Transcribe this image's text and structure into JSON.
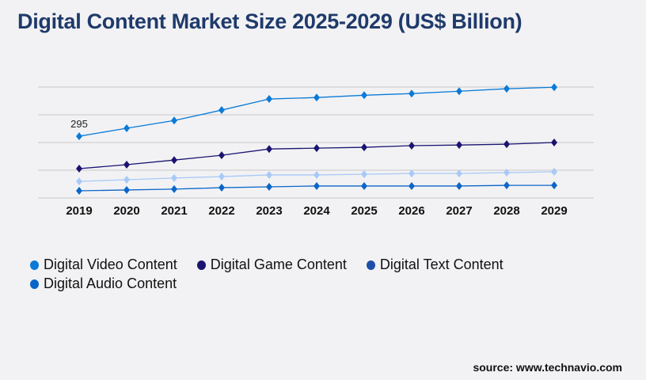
{
  "title": "Digital Content Market Size 2025-2029 (US$ Billion)",
  "source": "source: www.technavio.com",
  "chart_data": {
    "type": "line",
    "title": "Digital Content Market Size 2025-2029 (US$ Billion)",
    "categories": [
      "2019",
      "2020",
      "2021",
      "2022",
      "2023",
      "2024",
      "2025",
      "2026",
      "2027",
      "2028",
      "2029"
    ],
    "ylim": [
      0,
      530
    ],
    "grid": true,
    "legend_position": "bottom",
    "annotations": [
      {
        "series": 0,
        "index": 0,
        "text": "295"
      }
    ],
    "series": [
      {
        "name": "Digital Video Content",
        "color": "#0a7ad6",
        "legend_color": "#0a7ad6",
        "values": [
          295,
          333,
          370,
          420,
          473,
          480,
          491,
          499,
          510,
          522,
          529
        ]
      },
      {
        "name": "Digital Game Content",
        "color": "#1a1470",
        "legend_color": "#1a1470",
        "values": [
          140,
          159,
          181,
          204,
          234,
          238,
          242,
          250,
          253,
          257,
          265
        ]
      },
      {
        "name": "Digital Text Content",
        "color": "#a9c9f7",
        "legend_color": "#1f4ea8",
        "values": [
          79,
          87,
          95,
          102,
          110,
          110,
          113,
          117,
          117,
          121,
          125
        ]
      },
      {
        "name": "Digital Audio Content",
        "color": "#0b66c8",
        "legend_color": "#0b66c8",
        "values": [
          34,
          38,
          42,
          49,
          53,
          57,
          57,
          57,
          57,
          60,
          60
        ]
      }
    ]
  }
}
